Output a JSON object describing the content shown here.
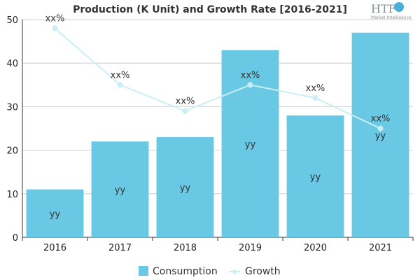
{
  "logo": {
    "text": "HTF",
    "subtitle": "Market Intelligence"
  },
  "chart_data": {
    "type": "bar",
    "title": "Production (K Unit) and Growth Rate [2016-2021]",
    "categories": [
      "2016",
      "2017",
      "2018",
      "2019",
      "2020",
      "2021"
    ],
    "ylim": [
      0,
      50
    ],
    "yticks": [
      0,
      10,
      20,
      30,
      40,
      50
    ],
    "grid": true,
    "legend_position": "bottom",
    "series": [
      {
        "name": "Consumption",
        "type": "bar",
        "color": "#69c9e4",
        "values": [
          11,
          22,
          23,
          43,
          28,
          47
        ],
        "labels": [
          "yy",
          "yy",
          "yy",
          "yy",
          "yy",
          "yy"
        ]
      },
      {
        "name": "Growth",
        "type": "line",
        "color": "#c9eef7",
        "values": [
          48,
          35,
          29,
          35,
          32,
          25
        ],
        "labels": [
          "xx%",
          "xx%",
          "xx%",
          "xx%",
          "xx%",
          "xx%"
        ]
      }
    ]
  }
}
